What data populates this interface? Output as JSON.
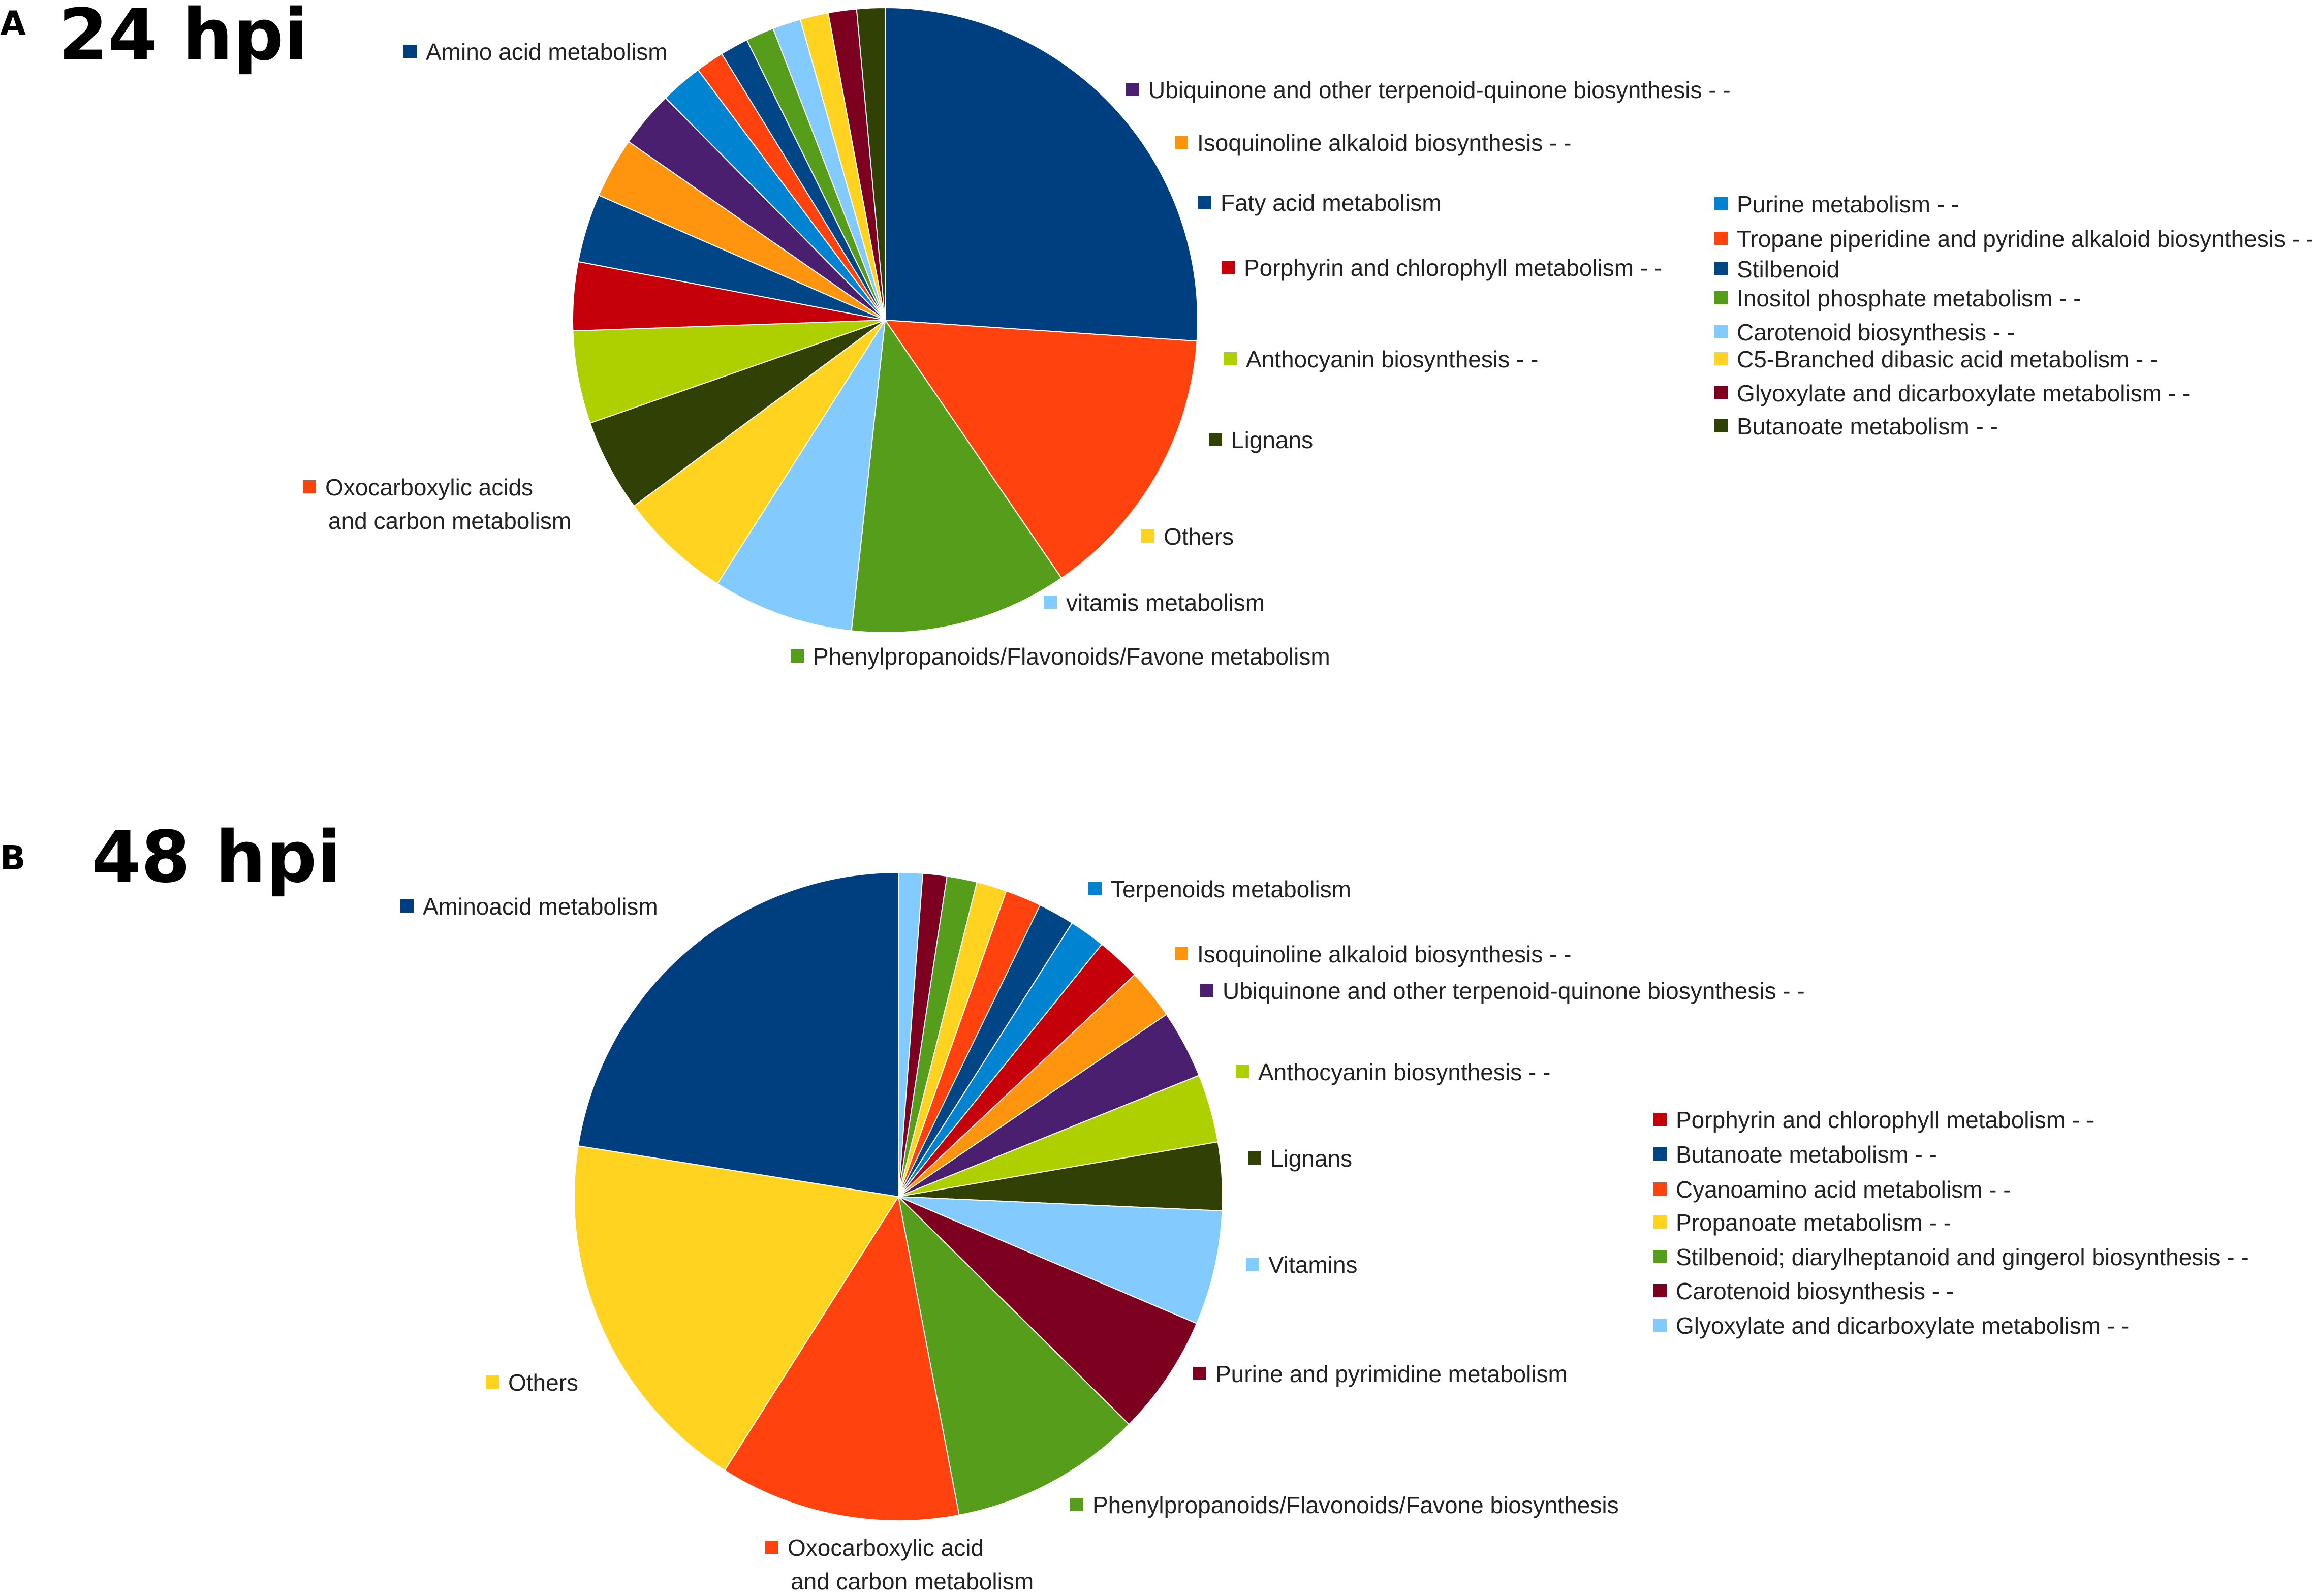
{
  "chart_data": [
    {
      "type": "pie",
      "panel_letter": "A",
      "title": "24 hpi",
      "slices": [
        {
          "label": "Amino acid metabolism",
          "value": 25.0,
          "color": "#003f7f"
        },
        {
          "label": "Oxocarboxylic acids and carbon metabolism",
          "value": 13.8,
          "color": "#ff420e"
        },
        {
          "label": "Phenylpropanoids/Flavonoids/Favone metabolism",
          "value": 10.8,
          "color": "#579d1c"
        },
        {
          "label": "vitamis metabolism",
          "value": 7.0,
          "color": "#83caff"
        },
        {
          "label": "Others",
          "value": 5.6,
          "color": "#ffd320"
        },
        {
          "label": "Lignans",
          "value": 4.6,
          "color": "#314004"
        },
        {
          "label": "Anthocyanin biosynthesis - -",
          "value": 4.6,
          "color": "#aecf00"
        },
        {
          "label": "Porphyrin and chlorophyll metabolism - -",
          "value": 3.4,
          "color": "#c5000b"
        },
        {
          "label": "Faty acid metabolism",
          "value": 3.4,
          "color": "#004586"
        },
        {
          "label": "Isoquinoline alkaloid biosynthesis - -",
          "value": 3.0,
          "color": "#ff950e"
        },
        {
          "label": "Ubiquinone and other terpenoid-quinone biosynthesis - -",
          "value": 2.8,
          "color": "#4b1f6f"
        },
        {
          "label": "Purine metabolism - -",
          "value": 2.1,
          "color": "#0084d1"
        },
        {
          "label": "Tropane  piperidine and pyridine alkaloid biosynthesis - -",
          "value": 1.4,
          "color": "#ff420e"
        },
        {
          "label": "Stilbenoid",
          "value": 1.4,
          "color": "#004586"
        },
        {
          "label": "Inositol phosphate metabolism - -",
          "value": 1.4,
          "color": "#579d1c"
        },
        {
          "label": "Carotenoid biosynthesis - -",
          "value": 1.4,
          "color": "#83caff"
        },
        {
          "label": "C5-Branched dibasic acid metabolism - -",
          "value": 1.4,
          "color": "#ffd320"
        },
        {
          "label": "Glyoxylate and dicarboxylate metabolism - -",
          "value": 1.4,
          "color": "#7e0021"
        },
        {
          "label": "Butanoate metabolism - -",
          "value": 1.4,
          "color": "#314004"
        }
      ]
    },
    {
      "type": "pie",
      "panel_letter": "B",
      "title": "48 hpi",
      "slices": [
        {
          "label": "Glyoxylate and dicarboxylate metabolism - -",
          "value": 1.2,
          "color": "#83caff"
        },
        {
          "label": "Carotenoid biosynthesis - -",
          "value": 1.2,
          "color": "#7e0021"
        },
        {
          "label": "Stilbenoid; diarylheptanoid and gingerol biosynthesis - -",
          "value": 1.5,
          "color": "#579d1c"
        },
        {
          "label": "Propanoate metabolism - -",
          "value": 1.5,
          "color": "#ffd320"
        },
        {
          "label": "Cyanoamino acid metabolism - -",
          "value": 1.8,
          "color": "#ff420e"
        },
        {
          "label": "Butanoate metabolism - -",
          "value": 1.8,
          "color": "#004586"
        },
        {
          "label": "Terpenoids metabolism",
          "value": 1.8,
          "color": "#0084d1"
        },
        {
          "label": "Porphyrin and chlorophyll metabolism - -",
          "value": 2.2,
          "color": "#c5000b"
        },
        {
          "label": "Isoquinoline alkaloid biosynthesis - -",
          "value": 2.5,
          "color": "#ff950e"
        },
        {
          "label": "Ubiquinone and other terpenoid-quinone biosynthesis - -",
          "value": 3.4,
          "color": "#4b1f6f"
        },
        {
          "label": "Anthocyanin biosynthesis - -",
          "value": 3.4,
          "color": "#aecf00"
        },
        {
          "label": "Lignans",
          "value": 3.4,
          "color": "#314004"
        },
        {
          "label": "Vitamins",
          "value": 5.7,
          "color": "#83caff"
        },
        {
          "label": "Purine and pyrimidine metabolism",
          "value": 6.0,
          "color": "#7e0021"
        },
        {
          "label": "Phenylpropanoids/Flavonoids/Favone biosynthesis",
          "value": 9.6,
          "color": "#579d1c"
        },
        {
          "label": "Oxocarboxylic acid and carbon metabolism",
          "value": 12.0,
          "color": "#ff420e"
        },
        {
          "label": "Others",
          "value": 18.5,
          "color": "#ffd320"
        },
        {
          "label": "Aminoacid metabolism",
          "value": 22.5,
          "color": "#003f7f"
        }
      ]
    }
  ]
}
